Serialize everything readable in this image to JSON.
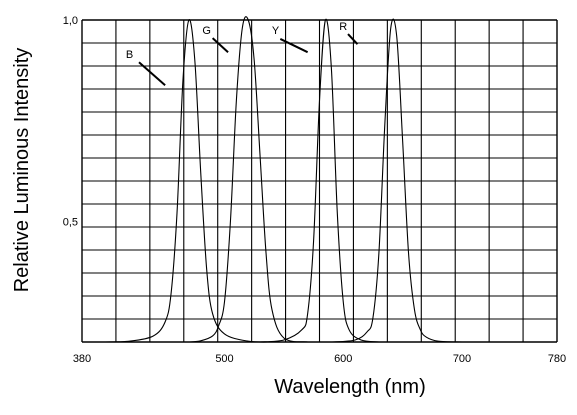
{
  "chart_data": {
    "type": "line",
    "xlabel": "Wavelength (nm)",
    "ylabel": "Relative Luminous Intensity",
    "xlim": [
      380,
      780
    ],
    "ylim": [
      0.2,
      1.0
    ],
    "x_ticks": [
      {
        "value": 380,
        "label": "380"
      },
      {
        "value": 500,
        "label": "500"
      },
      {
        "value": 600,
        "label": "600"
      },
      {
        "value": 700,
        "label": "700"
      },
      {
        "value": 780,
        "label": "780"
      }
    ],
    "y_ticks": [
      {
        "value": 0.5,
        "label": "0,5"
      },
      {
        "value": 1.0,
        "label": "1,0"
      }
    ],
    "grid": true,
    "series": [
      {
        "name": "B",
        "x": [
          400,
          420,
          440,
          450,
          455,
          460,
          465,
          470,
          475,
          480,
          485,
          490,
          500,
          520,
          540
        ],
        "y": [
          0.2,
          0.202,
          0.215,
          0.25,
          0.32,
          0.52,
          0.85,
          1.0,
          0.9,
          0.62,
          0.38,
          0.27,
          0.22,
          0.202,
          0.2
        ]
      },
      {
        "name": "G",
        "x": [
          470,
          480,
          490,
          495,
          500,
          505,
          510,
          515,
          520,
          525,
          530,
          535,
          540,
          550,
          570
        ],
        "y": [
          0.2,
          0.203,
          0.215,
          0.24,
          0.3,
          0.5,
          0.8,
          0.98,
          1.0,
          0.9,
          0.66,
          0.42,
          0.28,
          0.21,
          0.2
        ]
      },
      {
        "name": "Y",
        "x": [
          530,
          550,
          565,
          570,
          575,
          580,
          585,
          590,
          595,
          600,
          605,
          615,
          630
        ],
        "y": [
          0.2,
          0.205,
          0.23,
          0.27,
          0.45,
          0.8,
          1.0,
          0.88,
          0.52,
          0.3,
          0.23,
          0.205,
          0.2
        ]
      },
      {
        "name": "R",
        "x": [
          590,
          610,
          620,
          625,
          630,
          635,
          640,
          645,
          650,
          655,
          660,
          665,
          670,
          680,
          700
        ],
        "y": [
          0.2,
          0.205,
          0.225,
          0.26,
          0.42,
          0.74,
          0.98,
          0.96,
          0.7,
          0.42,
          0.28,
          0.23,
          0.212,
          0.202,
          0.2
        ]
      }
    ],
    "annotations": [
      {
        "series": "B",
        "text": "B",
        "text_x": 420,
        "text_y": 0.905,
        "line_x1": 428,
        "line_y1": 0.895,
        "line_x2": 450,
        "line_y2": 0.838
      },
      {
        "series": "G",
        "text": "G",
        "text_x": 485,
        "text_y": 0.965,
        "line_x1": 490,
        "line_y1": 0.955,
        "line_x2": 503,
        "line_y2": 0.92
      },
      {
        "series": "Y",
        "text": "Y",
        "text_x": 543,
        "text_y": 0.965,
        "line_x1": 547,
        "line_y1": 0.953,
        "line_x2": 570,
        "line_y2": 0.92
      },
      {
        "series": "R",
        "text": "R",
        "text_x": 600,
        "text_y": 0.975,
        "line_x1": 604,
        "line_y1": 0.965,
        "line_x2": 612,
        "line_y2": 0.94
      }
    ]
  }
}
